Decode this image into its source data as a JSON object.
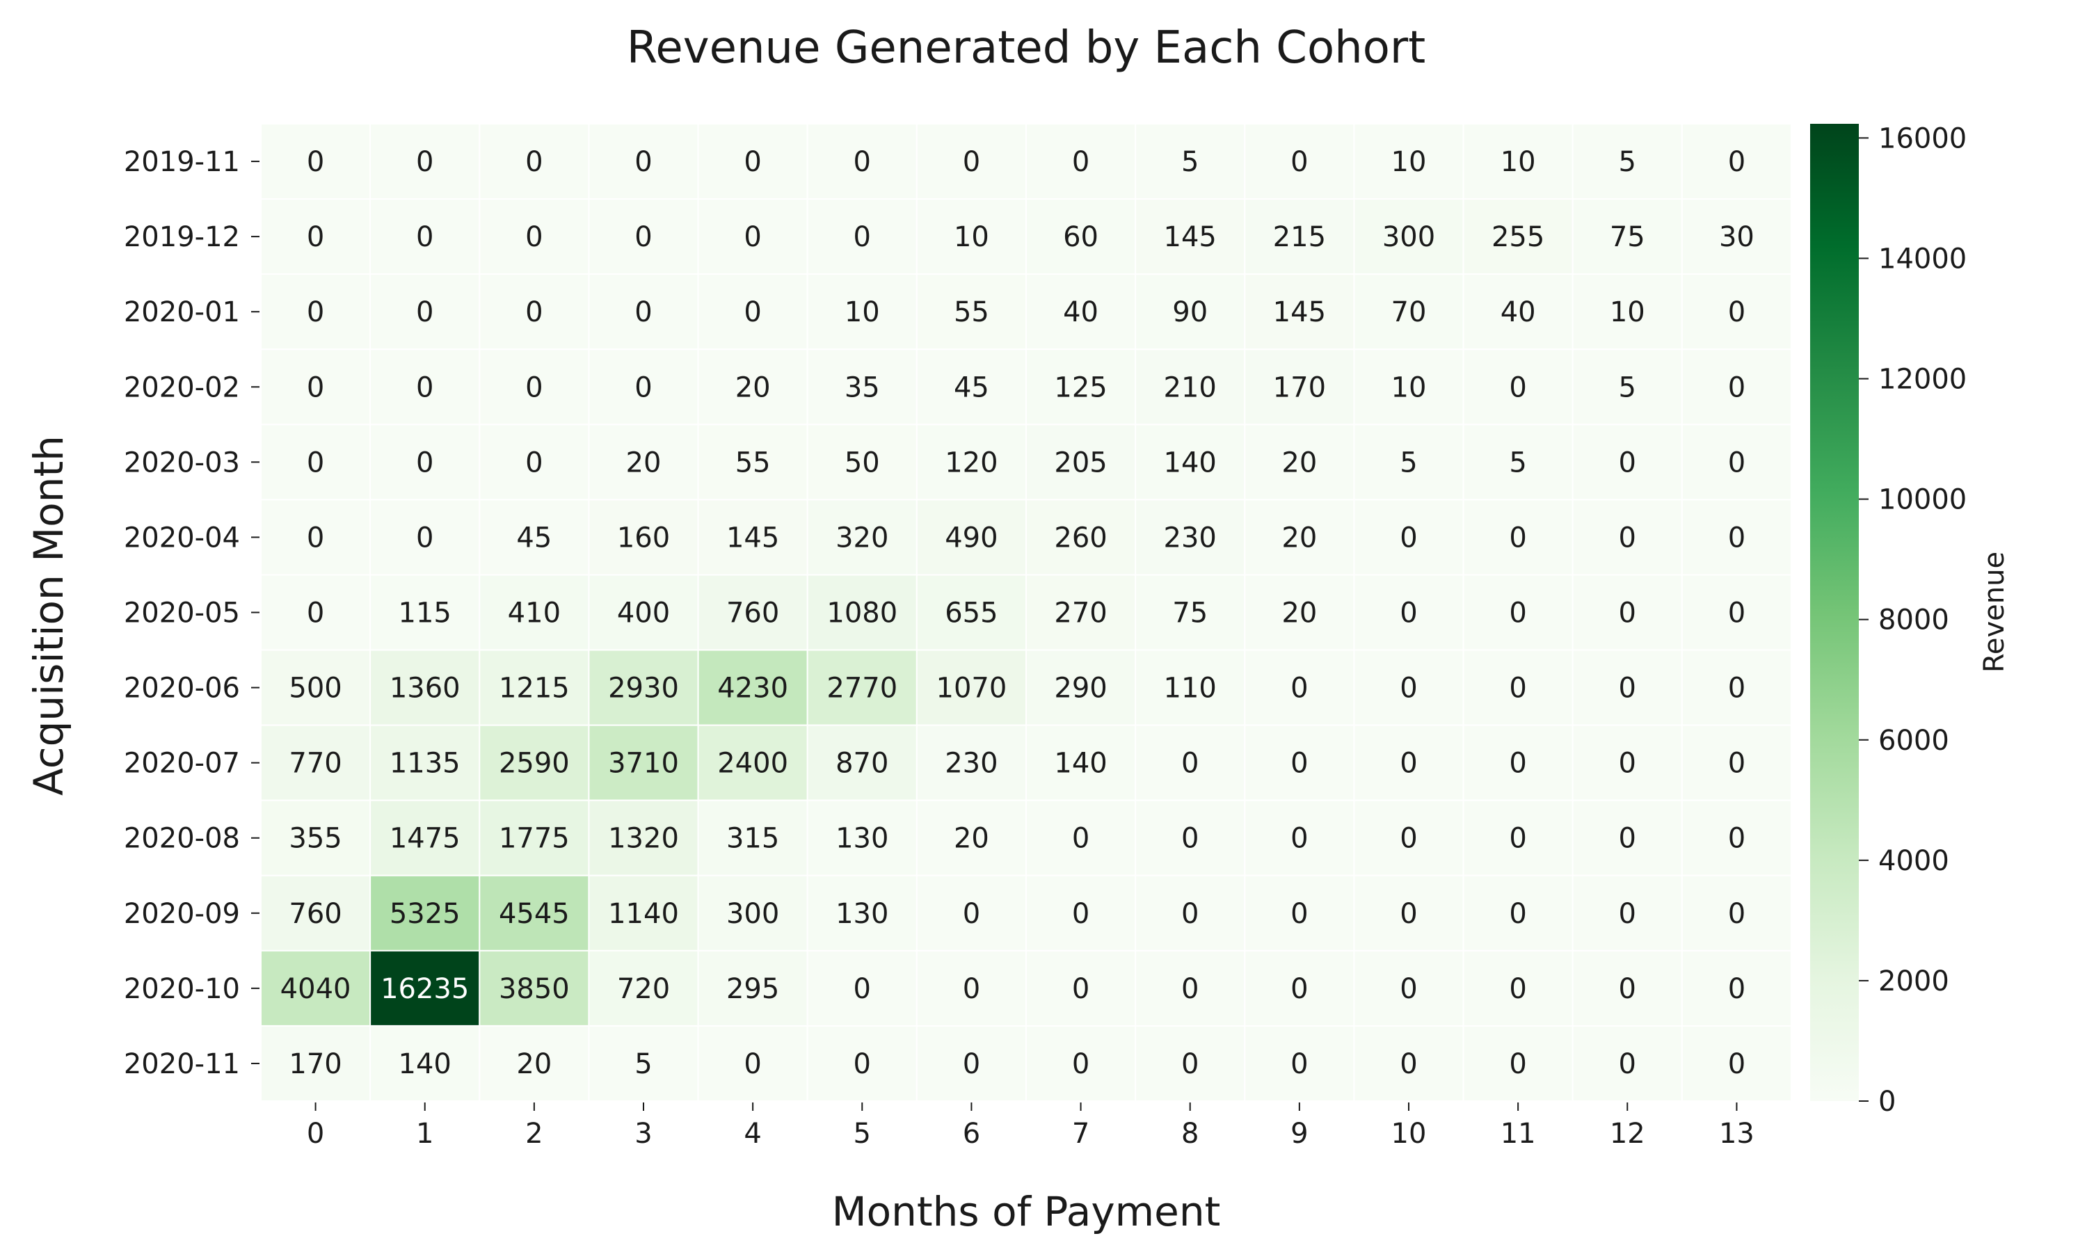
{
  "chart_data": {
    "type": "heatmap",
    "title": "Revenue Generated by Each Cohort",
    "xlabel": "Months of Payment",
    "ylabel": "Acquisition Month",
    "colorbar_label": "Revenue",
    "colormap": "Greens",
    "vmin": 0,
    "vmax": 16235,
    "colorbar_ticks": [
      0,
      2000,
      4000,
      6000,
      8000,
      10000,
      12000,
      14000,
      16000
    ],
    "x": [
      "0",
      "1",
      "2",
      "3",
      "4",
      "5",
      "6",
      "7",
      "8",
      "9",
      "10",
      "11",
      "12",
      "13"
    ],
    "y": [
      "2019-11",
      "2019-12",
      "2020-01",
      "2020-02",
      "2020-03",
      "2020-04",
      "2020-05",
      "2020-06",
      "2020-07",
      "2020-08",
      "2020-09",
      "2020-10",
      "2020-11"
    ],
    "values": [
      [
        0,
        0,
        0,
        0,
        0,
        0,
        0,
        0,
        5,
        0,
        10,
        10,
        5,
        0
      ],
      [
        0,
        0,
        0,
        0,
        0,
        0,
        10,
        60,
        145,
        215,
        300,
        255,
        75,
        30
      ],
      [
        0,
        0,
        0,
        0,
        0,
        10,
        55,
        40,
        90,
        145,
        70,
        40,
        10,
        0
      ],
      [
        0,
        0,
        0,
        0,
        20,
        35,
        45,
        125,
        210,
        170,
        10,
        0,
        5,
        0
      ],
      [
        0,
        0,
        0,
        20,
        55,
        50,
        120,
        205,
        140,
        20,
        5,
        5,
        0,
        0
      ],
      [
        0,
        0,
        45,
        160,
        145,
        320,
        490,
        260,
        230,
        20,
        0,
        0,
        0,
        0
      ],
      [
        0,
        115,
        410,
        400,
        760,
        1080,
        655,
        270,
        75,
        20,
        0,
        0,
        0,
        0
      ],
      [
        500,
        1360,
        1215,
        2930,
        4230,
        2770,
        1070,
        290,
        110,
        0,
        0,
        0,
        0,
        0
      ],
      [
        770,
        1135,
        2590,
        3710,
        2400,
        870,
        230,
        140,
        0,
        0,
        0,
        0,
        0,
        0
      ],
      [
        355,
        1475,
        1775,
        1320,
        315,
        130,
        20,
        0,
        0,
        0,
        0,
        0,
        0,
        0
      ],
      [
        760,
        5325,
        4545,
        1140,
        300,
        130,
        0,
        0,
        0,
        0,
        0,
        0,
        0,
        0
      ],
      [
        4040,
        16235,
        3850,
        720,
        295,
        0,
        0,
        0,
        0,
        0,
        0,
        0,
        0,
        0
      ],
      [
        170,
        140,
        20,
        5,
        0,
        0,
        0,
        0,
        0,
        0,
        0,
        0,
        0,
        0
      ]
    ]
  }
}
